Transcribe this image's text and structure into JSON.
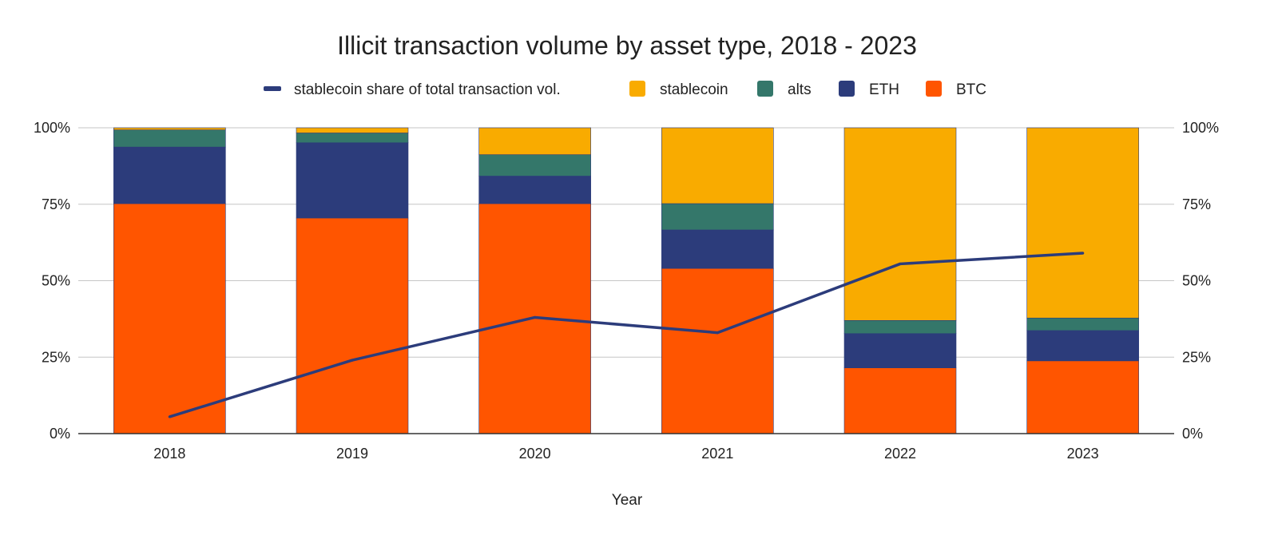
{
  "chart_data": {
    "type": "bar",
    "stacked": true,
    "title": "Illicit transaction volume by asset type, 2018 - 2023",
    "xlabel": "Year",
    "ylabel": "",
    "ylim": [
      0,
      100
    ],
    "y_ticks": [
      "0%",
      "25%",
      "50%",
      "75%",
      "100%"
    ],
    "y_tick_values": [
      0,
      25,
      50,
      75,
      100
    ],
    "right_axis_ticks": [
      "0%",
      "25%",
      "50%",
      "75%",
      "100%"
    ],
    "grid": true,
    "legend_position": "top",
    "categories": [
      "2018",
      "2019",
      "2020",
      "2021",
      "2022",
      "2023"
    ],
    "series": [
      {
        "name": "BTC",
        "type": "bar",
        "color": "#ff5500",
        "values": [
          75.2,
          70.5,
          75.2,
          54.0,
          21.5,
          23.8
        ]
      },
      {
        "name": "ETH",
        "type": "bar",
        "color": "#2c3c7b",
        "values": [
          18.5,
          24.6,
          9.0,
          12.6,
          11.2,
          9.9
        ]
      },
      {
        "name": "alts",
        "type": "bar",
        "color": "#34776a",
        "values": [
          5.6,
          3.2,
          7.0,
          8.6,
          4.3,
          4.1
        ]
      },
      {
        "name": "stablecoin",
        "type": "bar",
        "color": "#f9ab00",
        "values": [
          0.7,
          1.7,
          8.8,
          24.8,
          63.0,
          62.2
        ]
      },
      {
        "name": "stablecoin share of total transaction vol.",
        "type": "line",
        "color": "#2c3c7b",
        "values": [
          5.5,
          24.0,
          38.0,
          33.0,
          55.5,
          59.0
        ]
      }
    ],
    "legend_order": [
      "stablecoin share of total transaction vol.",
      "stablecoin",
      "alts",
      "ETH",
      "BTC"
    ]
  }
}
